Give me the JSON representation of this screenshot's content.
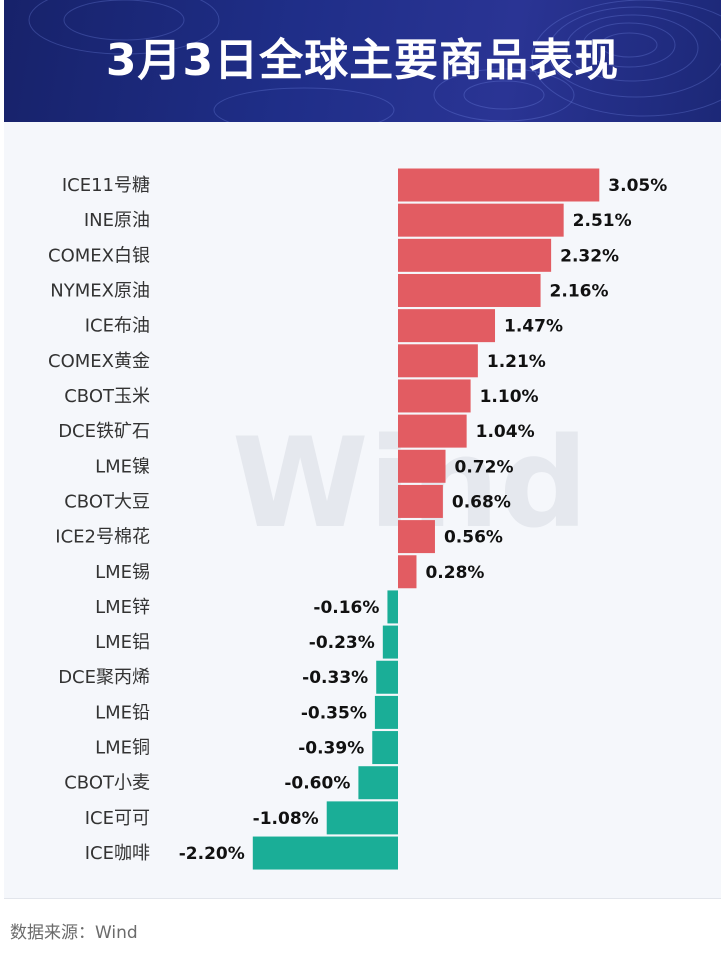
{
  "chart_data": {
    "type": "bar",
    "orientation": "horizontal",
    "title": "3月3日全球主要商品表现",
    "categories": [
      "ICE11号糖",
      "INE原油",
      "COMEX白银",
      "NYMEX原油",
      "ICE布油",
      "COMEX黄金",
      "CBOT玉米",
      "DCE铁矿石",
      "LME镍",
      "CBOT大豆",
      "ICE2号棉花",
      "LME锡",
      "LME锌",
      "LME铝",
      "DCE聚丙烯",
      "LME铅",
      "LME铜",
      "CBOT小麦",
      "ICE可可",
      "ICE咖啡"
    ],
    "values": [
      3.05,
      2.51,
      2.32,
      2.16,
      1.47,
      1.21,
      1.1,
      1.04,
      0.72,
      0.68,
      0.56,
      0.28,
      -0.16,
      -0.23,
      -0.33,
      -0.35,
      -0.39,
      -0.6,
      -1.08,
      -2.2
    ],
    "value_labels": [
      "3.05%",
      "2.51%",
      "2.32%",
      "2.16%",
      "1.47%",
      "1.21%",
      "1.10%",
      "1.04%",
      "0.72%",
      "0.68%",
      "0.56%",
      "0.28%",
      "-0.16%",
      "-0.23%",
      "-0.33%",
      "-0.35%",
      "-0.39%",
      "-0.60%",
      "-1.08%",
      "-2.20%"
    ],
    "grid": false,
    "legend": "none"
  },
  "watermark": "Wind",
  "source": "数据来源：Wind",
  "colors": {
    "positive": "#e25c62",
    "negative": "#1aae97",
    "header_background": "#1f2e88",
    "title_text": "#ffffff"
  }
}
